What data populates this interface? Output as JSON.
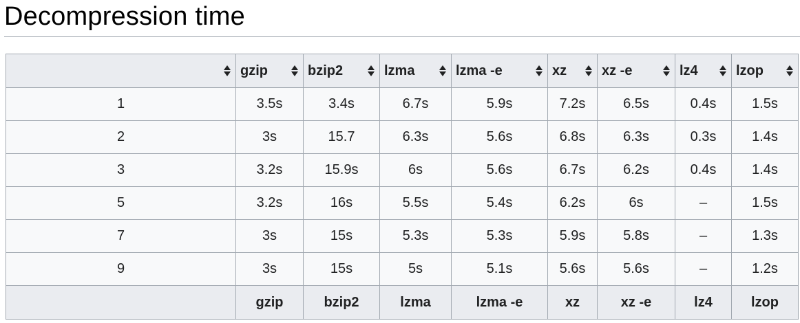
{
  "page": {
    "heading": "Decompression time"
  },
  "table": {
    "columns": [
      "",
      "gzip",
      "bzip2",
      "lzma",
      "lzma -e",
      "xz",
      "xz -e",
      "lz4",
      "lzop"
    ],
    "rows": [
      [
        "1",
        "3.5s",
        "3.4s",
        "6.7s",
        "5.9s",
        "7.2s",
        "6.5s",
        "0.4s",
        "1.5s"
      ],
      [
        "2",
        "3s",
        "15.7",
        "6.3s",
        "5.6s",
        "6.8s",
        "6.3s",
        "0.3s",
        "1.4s"
      ],
      [
        "3",
        "3.2s",
        "15.9s",
        "6s",
        "5.6s",
        "6.7s",
        "6.2s",
        "0.4s",
        "1.4s"
      ],
      [
        "5",
        "3.2s",
        "16s",
        "5.5s",
        "5.4s",
        "6.2s",
        "6s",
        "–",
        "1.5s"
      ],
      [
        "7",
        "3s",
        "15s",
        "5.3s",
        "5.3s",
        "5.9s",
        "5.8s",
        "–",
        "1.3s"
      ],
      [
        "9",
        "3s",
        "15s",
        "5s",
        "5.1s",
        "5.6s",
        "5.6s",
        "–",
        "1.2s"
      ]
    ],
    "footer": [
      "",
      "gzip",
      "bzip2",
      "lzma",
      "lzma -e",
      "xz",
      "xz -e",
      "lz4",
      "lzop"
    ]
  },
  "icons": {
    "sort": "sort-icon"
  }
}
